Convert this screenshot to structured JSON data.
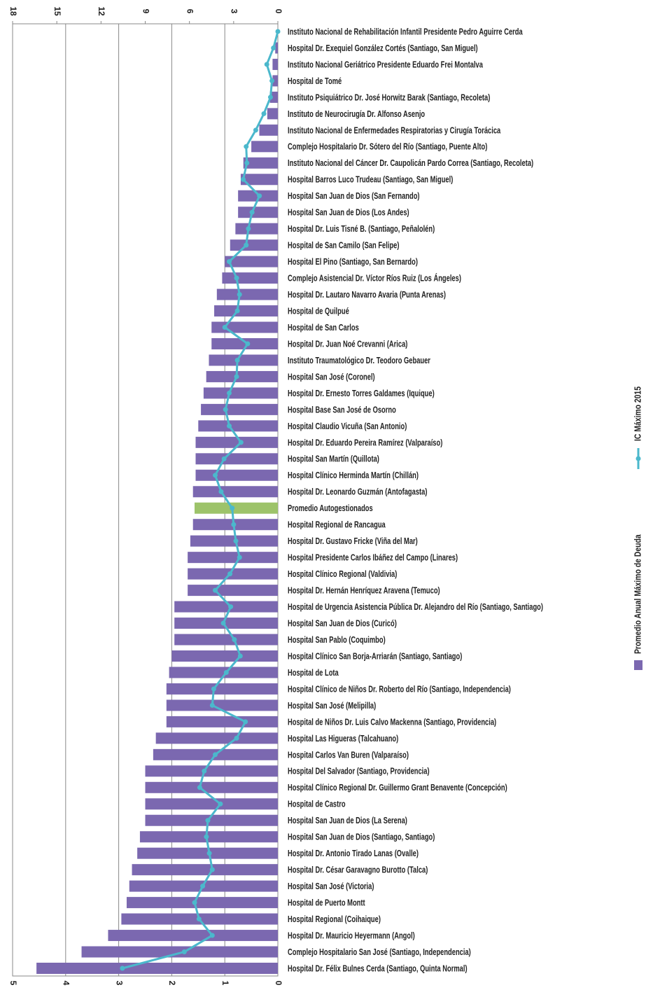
{
  "chart_data": {
    "type": "bar",
    "orientation": "horizontal",
    "categories": [
      "Instituto Nacional de Rehabilitación Infantil Presidente Pedro Aguirre Cerda",
      "Hospital Dr. Exequiel González Cortés (Santiago, San Miguel)",
      "Instituto Nacional Geriátrico Presidente Eduardo Frei Montalva",
      "Hospital de Tomé",
      "Instituto Psiquiátrico Dr. José Horwitz Barak (Santiago, Recoleta)",
      "Instituto de Neurocirugía Dr. Alfonso Asenjo",
      "Instituto Nacional de Enfermedades Respiratorias y Cirugía Torácica",
      "Complejo Hospitalario Dr. Sótero del Río (Santiago, Puente Alto)",
      "Instituto Nacional del Cáncer Dr. Caupolicán Pardo Correa (Santiago, Recoleta)",
      "Hospital Barros Luco Trudeau (Santiago, San Miguel)",
      "Hospital San Juan de Dios (San Fernando)",
      "Hospital San Juan de Dios (Los Andes)",
      "Hospital Dr. Luis Tisné B. (Santiago, Peñalolén)",
      "Hospital de San Camilo (San Felipe)",
      "Hospital El Pino (Santiago, San Bernardo)",
      "Complejo Asistencial Dr. Víctor Ríos Ruiz (Los Ángeles)",
      "Hospital Dr. Lautaro Navarro Avaria (Punta Arenas)",
      "Hospital de Quilpué",
      "Hospital de San Carlos",
      "Hospital Dr. Juan Noé Crevanni (Arica)",
      "Instituto Traumatológico Dr. Teodoro Gebauer",
      "Hospital San José (Coronel)",
      "Hospital Dr. Ernesto Torres Galdames (Iquique)",
      "Hospital Base San José de Osorno",
      "Hospital Claudio Vicuña (San Antonio)",
      "Hospital Dr. Eduardo Pereira Ramírez (Valparaíso)",
      "Hospital San Martín (Quillota)",
      "Hospital Clínico Herminda Martín (Chillán)",
      "Hospital Dr. Leonardo Guzmán (Antofagasta)",
      "Promedio Autogestionados",
      "Hospital Regional de Rancagua",
      "Hospital Dr. Gustavo Fricke (Viña del Mar)",
      "Hospital Presidente Carlos Ibáñez del Campo (Linares)",
      "Hospital Clínico Regional (Valdivia)",
      "Hospital Dr. Hernán Henríquez Aravena (Temuco)",
      "Hospital de Urgencia Asistencia Pública Dr. Alejandro del Río (Santiago, Santiago)",
      "Hospital San Juan de Dios (Curicó)",
      "Hospital San Pablo (Coquimbo)",
      "Hospital Clínico San Borja-Arriarán (Santiago, Santiago)",
      "Hospital de Lota",
      "Hospital Clínico de Niños Dr. Roberto del Río (Santiago, Independencia)",
      "Hospital San José (Melipilla)",
      "Hospital de Niños Dr. Luis Calvo Mackenna (Santiago, Providencia)",
      "Hospital Las Higueras (Talcahuano)",
      "Hospital Carlos Van Buren (Valparaíso)",
      "Hospital Del Salvador (Santiago, Providencia)",
      "Hospital Clínico Regional Dr. Guillermo Grant Benavente (Concepción)",
      "Hospital de Castro",
      "Hospital San Juan de Dios (La Serena)",
      "Hospital San Juan de Dios (Santiago, Santiago)",
      "Hospital Dr. Antonio Tirado Lanas (Ovalle)",
      "Hospital Dr. César Garavagno Burotto (Talca)",
      "Hospital San José (Victoria)",
      "Hospital de Puerto Montt",
      "Hospital Regional (Coihaique)",
      "Hospital Dr. Mauricio Heyermann (Angol)",
      "Complejo Hospitalario San José (Santiago, Independencia)",
      "Hospital Dr. Félix Bulnes Cerda (Santiago, Quinta Normal)"
    ],
    "series": [
      {
        "name": "Promedio Anual Máximo de Deuda",
        "type": "bar",
        "color": "#7b68b0",
        "colors": [
          "#7b68b0",
          "#7b68b0",
          "#7b68b0",
          "#7b68b0",
          "#7b68b0",
          "#7b68b0",
          "#7b68b0",
          "#7b68b0",
          "#7b68b0",
          "#7b68b0",
          "#7b68b0",
          "#7b68b0",
          "#7b68b0",
          "#7b68b0",
          "#7b68b0",
          "#7b68b0",
          "#7b68b0",
          "#7b68b0",
          "#7b68b0",
          "#7b68b0",
          "#7b68b0",
          "#7b68b0",
          "#7b68b0",
          "#7b68b0",
          "#7b68b0",
          "#7b68b0",
          "#7b68b0",
          "#7b68b0",
          "#7b68b0",
          "#9dc36a",
          "#7b68b0",
          "#7b68b0",
          "#7b68b0",
          "#7b68b0",
          "#7b68b0",
          "#7b68b0",
          "#7b68b0",
          "#7b68b0",
          "#7b68b0",
          "#7b68b0",
          "#7b68b0",
          "#7b68b0",
          "#7b68b0",
          "#7b68b0",
          "#7b68b0",
          "#7b68b0",
          "#7b68b0",
          "#7b68b0",
          "#7b68b0",
          "#7b68b0",
          "#7b68b0",
          "#7b68b0",
          "#7b68b0",
          "#7b68b0",
          "#7b68b0",
          "#7b68b0",
          "#7b68b0",
          "#7b68b0"
        ],
        "values": [
          0,
          0.05,
          0.1,
          0.1,
          0.15,
          0.2,
          0.35,
          0.5,
          0.65,
          0.7,
          0.75,
          0.75,
          0.8,
          0.9,
          1.0,
          1.05,
          1.15,
          1.2,
          1.25,
          1.25,
          1.3,
          1.35,
          1.4,
          1.45,
          1.5,
          1.55,
          1.55,
          1.55,
          1.6,
          1.57,
          1.6,
          1.65,
          1.7,
          1.7,
          1.7,
          1.95,
          1.95,
          1.95,
          2.0,
          2.05,
          2.1,
          2.1,
          2.1,
          2.3,
          2.35,
          2.5,
          2.5,
          2.5,
          2.5,
          2.6,
          2.65,
          2.75,
          2.8,
          2.85,
          2.95,
          3.2,
          3.7,
          4.55
        ]
      },
      {
        "name": "IC Máximo 2015",
        "type": "line",
        "axis": "x2",
        "color": "#4bb8cc",
        "values": [
          0,
          0.3,
          0.75,
          0.4,
          0.5,
          0.95,
          1.5,
          2.15,
          2.1,
          2.35,
          1.25,
          1.75,
          2.0,
          2.15,
          3.3,
          2.8,
          2.6,
          2.75,
          3.6,
          2.05,
          2.75,
          2.8,
          3.3,
          3.55,
          3.3,
          2.5,
          3.65,
          4.25,
          3.85,
          3.1,
          3.0,
          2.85,
          2.6,
          3.25,
          4.25,
          3.2,
          3.7,
          2.95,
          2.55,
          3.5,
          4.35,
          4.45,
          2.2,
          2.8,
          4.25,
          5.0,
          5.3,
          3.9,
          4.75,
          4.85,
          4.65,
          4.45,
          5.1,
          5.65,
          5.35,
          4.45,
          6.35,
          10.55
        ]
      }
    ],
    "xlim": [
      0,
      5
    ],
    "xticks": [
      0,
      1,
      2,
      3,
      4,
      5
    ],
    "x2lim": [
      0,
      18
    ],
    "x2ticks": [
      0,
      3,
      6,
      9,
      12,
      15,
      18
    ],
    "grid": true
  }
}
